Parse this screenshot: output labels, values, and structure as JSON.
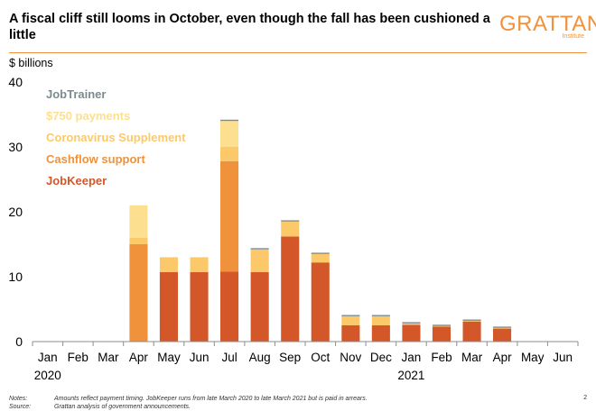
{
  "header": {
    "title": "A fiscal cliff still looms in October, even though the fall has been cushioned a little",
    "logo_text": "GRATTAN",
    "logo_sub": "Institute"
  },
  "footer": {
    "notes_label": "Notes:",
    "notes_text": "Amounts reflect payment timing. JobKeeper runs from late March 2020 to late March 2021 but is paid in arrears.",
    "source_label": "Source:",
    "source_text": "Grattan analysis of government announcements.",
    "page_number": "2"
  },
  "colors": {
    "accent": "#F0923B"
  },
  "chart_data": {
    "type": "bar",
    "stacked": true,
    "title": "A fiscal cliff still looms in October, even though the fall has been cushioned a little",
    "ylabel": "$ billions",
    "xlabel": "",
    "ylim": [
      0,
      40
    ],
    "yticks": [
      0,
      10,
      20,
      30,
      40
    ],
    "grid": false,
    "legend_position": "top-left",
    "categories": [
      "Jan",
      "Feb",
      "Mar",
      "Apr",
      "May",
      "Jun",
      "Jul",
      "Aug",
      "Sep",
      "Oct",
      "Nov",
      "Dec",
      "Jan",
      "Feb",
      "Mar",
      "Apr",
      "May",
      "Jun"
    ],
    "year_labels": [
      {
        "category_index": 0,
        "label": "2020"
      },
      {
        "category_index": 12,
        "label": "2021"
      }
    ],
    "series": [
      {
        "name": "JobKeeper",
        "color": "#D4572A",
        "values": [
          0,
          0,
          0,
          0,
          10.7,
          10.7,
          10.8,
          10.7,
          16.2,
          12.2,
          2.5,
          2.5,
          2.6,
          2.3,
          3.1,
          2.0,
          0,
          0
        ]
      },
      {
        "name": "Cashflow support",
        "color": "#F0923B",
        "values": [
          0,
          0,
          0,
          15.0,
          0,
          0,
          17.0,
          0,
          0,
          0,
          0,
          0,
          0,
          0,
          0,
          0,
          0,
          0
        ]
      },
      {
        "name": "Coronavirus Supplement",
        "color": "#FBC96A",
        "values": [
          0,
          0,
          0,
          1.0,
          2.3,
          2.3,
          2.2,
          3.5,
          2.3,
          1.3,
          1.4,
          1.4,
          0.2,
          0.1,
          0.1,
          0.1,
          0,
          0
        ]
      },
      {
        "name": "$750 payments",
        "color": "#FCE08F",
        "values": [
          0,
          0,
          0,
          5.0,
          0,
          0,
          4.0,
          0,
          0,
          0,
          0,
          0,
          0,
          0,
          0,
          0,
          0,
          0
        ]
      },
      {
        "name": "JobTrainer",
        "color": "#7D8A8E",
        "values": [
          0,
          0,
          0,
          0,
          0,
          0,
          0.2,
          0.2,
          0.2,
          0.2,
          0.2,
          0.2,
          0.2,
          0.2,
          0.2,
          0.2,
          0,
          0
        ]
      }
    ]
  }
}
